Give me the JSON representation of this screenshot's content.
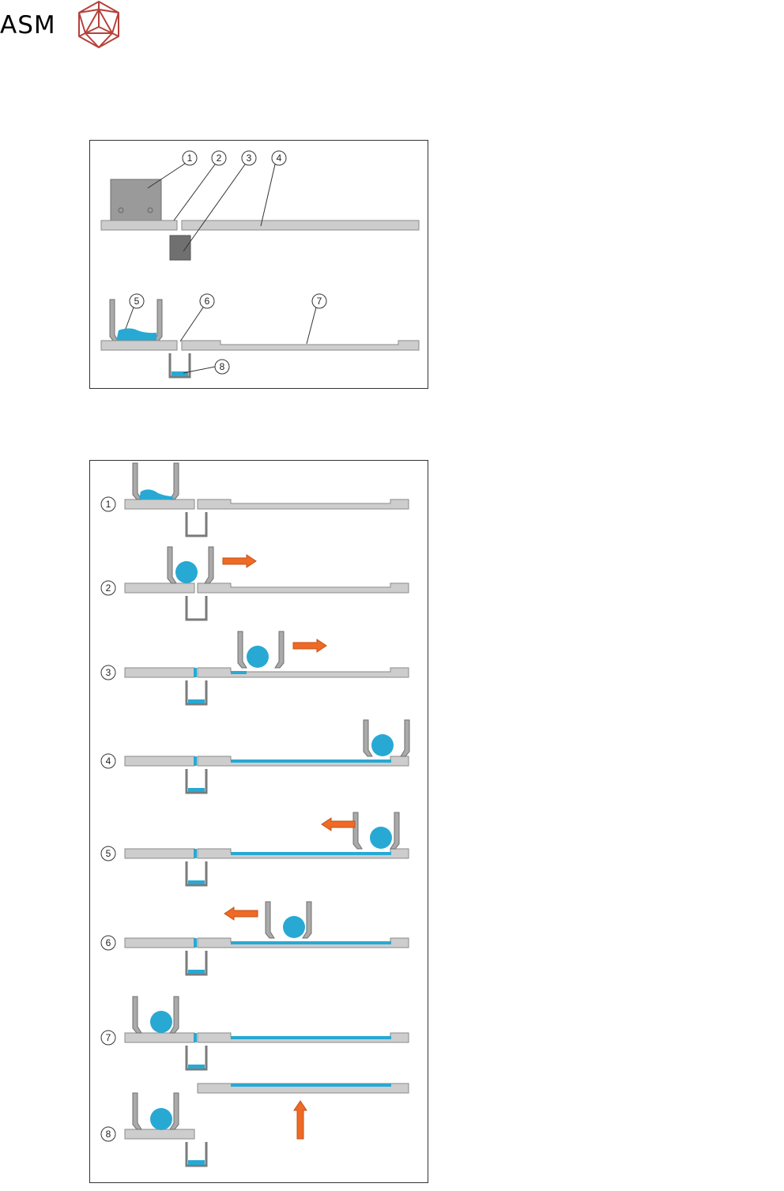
{
  "logo": {
    "text": "ASM",
    "icon": "asm-icosahedron-icon",
    "color": "#b5413a"
  },
  "colors": {
    "plate": "#cdcdcd",
    "plate_stroke": "#8a8a8a",
    "wall": "#aaaaaa",
    "powder": "#27a9d4",
    "arrow": "#ef6a24",
    "arrow_stroke": "#c0521a",
    "panel_border": "#333333"
  },
  "components_panel": {
    "callouts": [
      "1",
      "2",
      "3",
      "4",
      "5",
      "6",
      "7",
      "8"
    ]
  },
  "sequence_panel": {
    "steps": [
      {
        "label": "1",
        "arrow": "none"
      },
      {
        "label": "2",
        "arrow": "right"
      },
      {
        "label": "3",
        "arrow": "right"
      },
      {
        "label": "4",
        "arrow": "none"
      },
      {
        "label": "5",
        "arrow": "left"
      },
      {
        "label": "6",
        "arrow": "left"
      },
      {
        "label": "7",
        "arrow": "none"
      },
      {
        "label": "8",
        "arrow": "up"
      }
    ]
  }
}
